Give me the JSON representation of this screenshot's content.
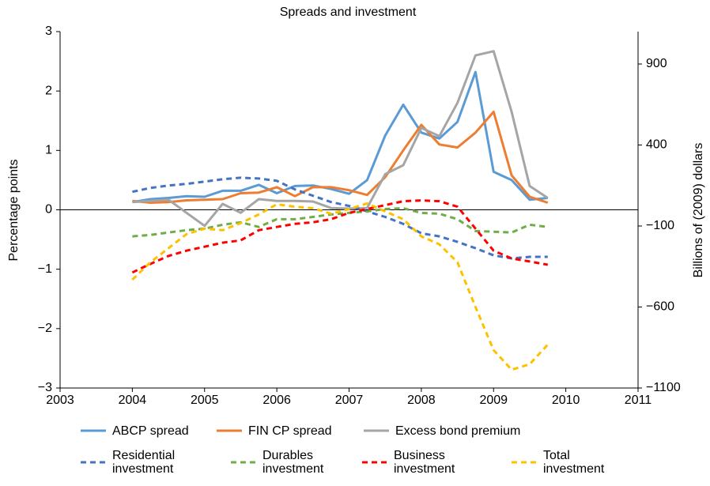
{
  "chart_data": {
    "type": "line",
    "title": "Spreads and investment",
    "y_label": "Percentage points",
    "y2_label": "Billions of (2009) dollars",
    "x": [
      2004,
      2004.25,
      2004.5,
      2004.75,
      2005,
      2005.25,
      2005.5,
      2005.75,
      2006,
      2006.25,
      2006.5,
      2006.75,
      2007,
      2007.25,
      2007.5,
      2007.75,
      2008,
      2008.25,
      2008.5,
      2008.75,
      2009,
      2009.25,
      2009.5,
      2009.75
    ],
    "xlim": [
      2003,
      2011
    ],
    "xticks": [
      2003,
      2004,
      2005,
      2006,
      2007,
      2008,
      2009,
      2010,
      2011
    ],
    "ylim": [
      -3,
      3
    ],
    "yticks": [
      {
        "value": -3,
        "label": "−3"
      },
      {
        "value": -2,
        "label": "−2"
      },
      {
        "value": -1,
        "label": "−1"
      },
      0,
      1,
      2,
      3
    ],
    "y2lim": [
      -1100,
      1100
    ],
    "y2ticks": [
      {
        "value": -1100,
        "label": "−1100"
      },
      {
        "value": -600,
        "label": "−600"
      },
      {
        "value": -100,
        "label": "−100"
      },
      400,
      900
    ],
    "series": [
      {
        "name": "ABCP spread",
        "color": "#5b9bd5",
        "dashed": false,
        "values": [
          0.13,
          0.18,
          0.2,
          0.23,
          0.22,
          0.32,
          0.32,
          0.42,
          0.28,
          0.4,
          0.41,
          0.35,
          0.27,
          0.5,
          1.25,
          1.77,
          1.3,
          1.2,
          1.48,
          2.32,
          0.64,
          0.5,
          0.17,
          0.2
        ]
      },
      {
        "name": "FIN CP spread",
        "color": "#ed7d31",
        "dashed": false,
        "values": [
          0.15,
          0.12,
          0.13,
          0.16,
          0.17,
          0.18,
          0.28,
          0.29,
          0.38,
          0.23,
          0.38,
          0.38,
          0.33,
          0.25,
          0.55,
          1.0,
          1.43,
          1.1,
          1.05,
          1.3,
          1.65,
          0.58,
          0.22,
          0.12
        ]
      },
      {
        "name": "Excess bond premium",
        "color": "#a5a5a5",
        "dashed": false,
        "values": [
          0.13,
          0.15,
          0.17,
          -0.05,
          -0.27,
          0.1,
          -0.05,
          0.18,
          0.15,
          0.15,
          0.14,
          0.03,
          0.02,
          0.03,
          0.6,
          0.75,
          1.38,
          1.24,
          1.8,
          2.6,
          2.67,
          1.65,
          0.4,
          0.2
        ]
      },
      {
        "name": "Residential investment",
        "color": "#4472c4",
        "dashed": true,
        "axis": "y2",
        "values": [
          111,
          135,
          150,
          160,
          174,
          189,
          198,
          193,
          179,
          126,
          87,
          48,
          24,
          -10,
          -44,
          -87,
          -145,
          -164,
          -198,
          -237,
          -281,
          -300,
          -290,
          -290
        ]
      },
      {
        "name": "Durables investment",
        "color": "#70ad47",
        "dashed": true,
        "axis": "y2",
        "values": [
          -164,
          -155,
          -140,
          -126,
          -116,
          -92,
          -77,
          -106,
          -58,
          -58,
          -44,
          -29,
          -19,
          -10,
          5,
          10,
          -19,
          -24,
          -58,
          -131,
          -135,
          -140,
          -92,
          -106
        ]
      },
      {
        "name": "Business investment",
        "color": "#ff0000",
        "dashed": true,
        "axis": "y2",
        "values": [
          -387,
          -334,
          -285,
          -252,
          -228,
          -203,
          -189,
          -126,
          -106,
          -87,
          -77,
          -58,
          -19,
          5,
          29,
          53,
          58,
          53,
          19,
          -116,
          -252,
          -300,
          -319,
          -339
        ]
      },
      {
        "name": "Total investment",
        "color": "#ffc000",
        "dashed": true,
        "axis": "y2",
        "values": [
          -431,
          -324,
          -237,
          -150,
          -116,
          -126,
          -82,
          -29,
          34,
          19,
          10,
          -24,
          5,
          39,
          -10,
          -58,
          -164,
          -213,
          -324,
          -600,
          -866,
          -987,
          -953,
          -832
        ]
      }
    ]
  }
}
